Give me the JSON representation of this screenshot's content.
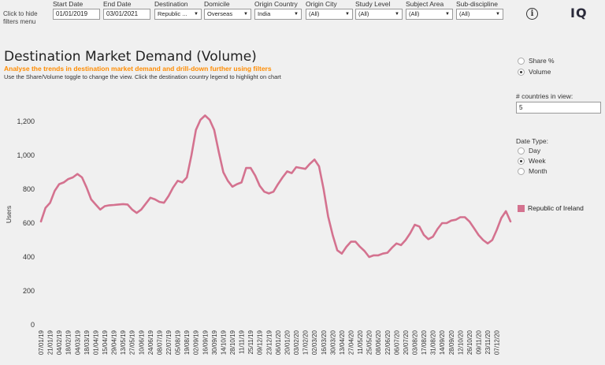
{
  "header": {
    "hide_filters": "Click to hide filters menu",
    "info_icon": "info-icon",
    "logo": "IQ",
    "filters": [
      {
        "label": "Start Date",
        "value": "01/01/2019",
        "kind": "input"
      },
      {
        "label": "End Date",
        "value": "03/01/2021",
        "kind": "input"
      },
      {
        "label": "Destination",
        "value": "Republic ...",
        "kind": "select"
      },
      {
        "label": "Domicile",
        "value": "Overseas",
        "kind": "select"
      },
      {
        "label": "Origin Country",
        "value": "India",
        "kind": "select"
      },
      {
        "label": "Origin City",
        "value": "(All)",
        "kind": "select"
      },
      {
        "label": "Study Level",
        "value": "(All)",
        "kind": "select"
      },
      {
        "label": "Subject Area",
        "value": "(All)",
        "kind": "select"
      },
      {
        "label": "Sub-discipline",
        "value": "(All)",
        "kind": "select"
      }
    ]
  },
  "main": {
    "title": "Destination Market Demand (Volume)",
    "subtitle": "Analyse the trends in destination market demand and drill-down further using filters",
    "instructions": "Use the Share/Volume toggle to change the view. Click the destination country legend to highlight on chart"
  },
  "controls": {
    "share_volume": [
      {
        "label": "Share %",
        "selected": false
      },
      {
        "label": "Volume",
        "selected": true
      }
    ],
    "countries_label": "# countries in view:",
    "countries_value": "5",
    "date_type_label": "Date Type:",
    "date_type": [
      {
        "label": "Day",
        "selected": false
      },
      {
        "label": "Week",
        "selected": true
      },
      {
        "label": "Month",
        "selected": false
      }
    ]
  },
  "chart_data": {
    "type": "line",
    "ylabel": "Users",
    "ylim": [
      0,
      1300
    ],
    "yticks": [
      0,
      200,
      400,
      600,
      800,
      1000,
      1200
    ],
    "ytick_labels": [
      "0",
      "200",
      "400",
      "600",
      "800",
      "1,000",
      "1,200"
    ],
    "xtick_labels": [
      "07/01/19",
      "21/01/19",
      "04/02/19",
      "18/02/19",
      "04/03/19",
      "18/03/19",
      "01/04/19",
      "15/04/19",
      "29/04/19",
      "13/05/19",
      "27/05/19",
      "10/06/19",
      "24/06/19",
      "08/07/19",
      "22/07/19",
      "05/08/19",
      "19/08/19",
      "02/09/19",
      "16/09/19",
      "30/09/19",
      "14/10/19",
      "28/10/19",
      "11/11/19",
      "25/11/19",
      "09/12/19",
      "23/12/19",
      "06/01/20",
      "20/01/20",
      "03/02/20",
      "17/02/20",
      "02/03/20",
      "16/03/20",
      "30/03/20",
      "13/04/20",
      "27/04/20",
      "11/05/20",
      "25/05/20",
      "08/06/20",
      "22/06/20",
      "06/07/20",
      "20/07/20",
      "03/08/20",
      "17/08/20",
      "31/08/20",
      "14/09/20",
      "28/09/20",
      "12/10/20",
      "26/10/20",
      "09/11/20",
      "23/11/20",
      "07/12/20"
    ],
    "series": [
      {
        "name": "Republic of Ireland",
        "color": "#d4728f",
        "values": [
          610,
          690,
          720,
          790,
          830,
          840,
          860,
          870,
          890,
          870,
          810,
          740,
          710,
          680,
          700,
          705,
          707,
          710,
          712,
          710,
          680,
          660,
          680,
          715,
          750,
          740,
          725,
          720,
          760,
          810,
          850,
          840,
          870,
          1000,
          1150,
          1210,
          1235,
          1210,
          1150,
          1020,
          900,
          850,
          815,
          830,
          840,
          925,
          925,
          880,
          820,
          785,
          775,
          785,
          830,
          870,
          905,
          895,
          930,
          925,
          920,
          950,
          975,
          935,
          800,
          640,
          530,
          440,
          420,
          460,
          490,
          490,
          460,
          435,
          400,
          410,
          410,
          420,
          425,
          455,
          480,
          470,
          500,
          540,
          590,
          580,
          530,
          505,
          520,
          565,
          600,
          600,
          615,
          620,
          635,
          635,
          610,
          570,
          530,
          500,
          480,
          500,
          560,
          630,
          670,
          610
        ]
      }
    ],
    "legend": {
      "entries": [
        "Republic of Ireland"
      ],
      "placement": "right"
    },
    "grid": false
  }
}
